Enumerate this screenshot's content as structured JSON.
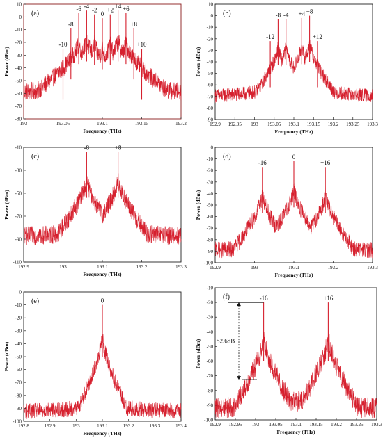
{
  "colors": {
    "trace": "#d6202e",
    "frame_a": "#8b1a1a",
    "axis": "#222222"
  },
  "chart_data": [
    {
      "id": "a",
      "type": "line",
      "panel_label": "(a)",
      "xlabel": "Frequency  (THz)",
      "ylabel": "Power  (dBm)",
      "xlim": [
        193,
        193.2
      ],
      "ylim": [
        -80,
        10
      ],
      "xticks": [
        "193",
        "193.05",
        "193.1",
        "193.15",
        "193.2"
      ],
      "yticks": [
        "10",
        "0",
        "-10",
        "-20",
        "-30",
        "-40",
        "-50",
        "-60",
        "-70",
        "-80"
      ],
      "baseline": {
        "center": 193.1,
        "floor": -62,
        "rise": 14,
        "width": 0.07,
        "noise": 7
      },
      "peaks": [
        {
          "x": 193.05,
          "y": -25,
          "label": "-10"
        },
        {
          "x": 193.06,
          "y": -9,
          "label": "-8"
        },
        {
          "x": 193.07,
          "y": 3,
          "label": "-6"
        },
        {
          "x": 193.08,
          "y": 5,
          "label": "-4"
        },
        {
          "x": 193.09,
          "y": 2,
          "label": "-2"
        },
        {
          "x": 193.1,
          "y": -1,
          "label": "0"
        },
        {
          "x": 193.11,
          "y": 2,
          "label": "+2"
        },
        {
          "x": 193.12,
          "y": 5,
          "label": "+4"
        },
        {
          "x": 193.13,
          "y": 3,
          "label": "+6"
        },
        {
          "x": 193.14,
          "y": -9,
          "label": "+8"
        },
        {
          "x": 193.15,
          "y": -25,
          "label": "+10"
        }
      ]
    },
    {
      "id": "b",
      "type": "line",
      "panel_label": "(b)",
      "xlabel": "Frequency  (THz)",
      "ylabel": "Power  (dBm)",
      "xlim": [
        192.9,
        193.3
      ],
      "ylim": [
        -90,
        10
      ],
      "xticks": [
        "192.9",
        "192.95",
        "193",
        "193.05",
        "193.1",
        "193.15",
        "193.2",
        "193.25",
        "193.3"
      ],
      "yticks": [
        "10",
        "0",
        "-10",
        "-20",
        "-30",
        "-40",
        "-50",
        "-60",
        "-70",
        "-80",
        "-90"
      ],
      "baseline": {
        "center": 193.1,
        "floor": -70,
        "rise": 20,
        "width": 0.06,
        "noise": 6
      },
      "peaks": [
        {
          "x": 193.04,
          "y": -22,
          "label": "-12"
        },
        {
          "x": 193.06,
          "y": -3,
          "label": "-8"
        },
        {
          "x": 193.08,
          "y": -3,
          "label": "-4"
        },
        {
          "x": 193.12,
          "y": -2,
          "label": "+4"
        },
        {
          "x": 193.14,
          "y": 0,
          "label": "+8"
        },
        {
          "x": 193.16,
          "y": -22,
          "label": "+12"
        }
      ]
    },
    {
      "id": "c",
      "type": "line",
      "panel_label": "(c)",
      "xlabel": "Frequency  (THz)",
      "ylabel": "Power  (dBm)",
      "xlim": [
        192.9,
        193.3
      ],
      "ylim": [
        -110,
        -10
      ],
      "xticks": [
        "192.9",
        "193",
        "193.1",
        "193.2",
        "193.3"
      ],
      "yticks": [
        "-10",
        "-30",
        "-50",
        "-70",
        "-90",
        "-110"
      ],
      "baseline": {
        "center": 193.1,
        "floor": -88,
        "rise": 10,
        "width": 0.08,
        "noise": 8
      },
      "peaks": [
        {
          "x": 193.06,
          "y": -14,
          "label": "-8"
        },
        {
          "x": 193.14,
          "y": -14,
          "label": "+8"
        }
      ]
    },
    {
      "id": "d",
      "type": "line",
      "panel_label": "(d)",
      "xlabel": "Frequency  (THz)",
      "ylabel": "Power  (dBm)",
      "xlim": [
        192.9,
        193.3
      ],
      "ylim": [
        -100,
        0
      ],
      "xticks": [
        "192.9",
        "193",
        "193.1",
        "193.2",
        "193.3"
      ],
      "yticks": [
        "0",
        "-10",
        "-20",
        "-30",
        "-40",
        "-50",
        "-60",
        "-70",
        "-80",
        "-90",
        "-100"
      ],
      "baseline": {
        "center": 193.1,
        "floor": -90,
        "rise": 8,
        "width": 0.1,
        "noise": 7
      },
      "peaks": [
        {
          "x": 193.02,
          "y": -17,
          "label": "-16"
        },
        {
          "x": 193.1,
          "y": -12,
          "label": "0"
        },
        {
          "x": 193.18,
          "y": -17,
          "label": "+16"
        }
      ]
    },
    {
      "id": "e",
      "type": "line",
      "panel_label": "(e)",
      "xlabel": "Frequency  (THz)",
      "ylabel": "Power  (dBm)",
      "xlim": [
        192.8,
        193.4
      ],
      "ylim": [
        -100,
        0
      ],
      "xticks": [
        "192.8",
        "192.9",
        "193",
        "193.1",
        "193.2",
        "193.3",
        "193.4"
      ],
      "yticks": [
        "0",
        "-10",
        "-20",
        "-30",
        "-40",
        "-50",
        "-60",
        "-70",
        "-80",
        "-90",
        "-100"
      ],
      "baseline": {
        "center": 193.1,
        "floor": -93,
        "rise": 6,
        "width": 0.15,
        "noise": 6
      },
      "peaks": [
        {
          "x": 193.1,
          "y": -10,
          "label": "0"
        }
      ]
    },
    {
      "id": "f",
      "type": "line",
      "panel_label": "(f)",
      "xlabel": "Frequency  (THz)",
      "ylabel": "Power  (dBm)",
      "xlim": [
        192.9,
        193.3
      ],
      "ylim": [
        -100,
        -10
      ],
      "xticks": [
        "192.9",
        "192.95",
        "193",
        "193.05",
        "193.1",
        "193.15",
        "193.2",
        "193.25",
        "193.3"
      ],
      "yticks": [
        "-10",
        "-20",
        "-30",
        "-40",
        "-50",
        "-60",
        "-70",
        "-80",
        "-90",
        "-100"
      ],
      "baseline": {
        "center": 193.1,
        "floor": -93,
        "rise": 6,
        "width": 0.12,
        "noise": 7
      },
      "peaks": [
        {
          "x": 193.02,
          "y": -20,
          "label": "-16"
        },
        {
          "x": 193.18,
          "y": -20,
          "label": "+16"
        }
      ],
      "annotation": {
        "text": "52.6dB",
        "top": -20,
        "bottom": -72.6
      }
    }
  ]
}
